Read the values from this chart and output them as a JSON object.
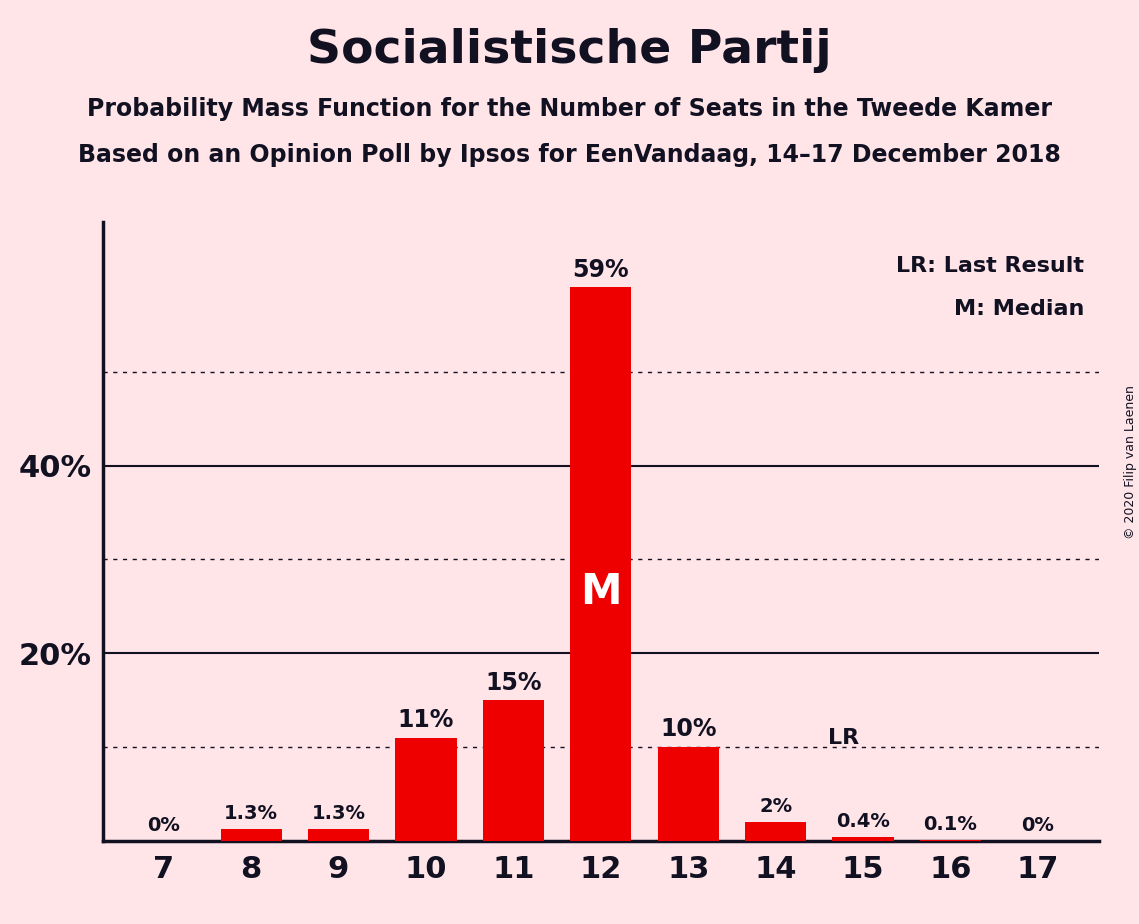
{
  "title": "Socialistische Partij",
  "subtitle1": "Probability Mass Function for the Number of Seats in the Tweede Kamer",
  "subtitle2": "Based on an Opinion Poll by Ipsos for EenVandaag, 14–17 December 2018",
  "copyright": "© 2020 Filip van Laenen",
  "categories": [
    7,
    8,
    9,
    10,
    11,
    12,
    13,
    14,
    15,
    16,
    17
  ],
  "values": [
    0.0,
    1.3,
    1.3,
    11.0,
    15.0,
    59.0,
    10.0,
    2.0,
    0.4,
    0.1,
    0.0
  ],
  "labels": [
    "0%",
    "1.3%",
    "1.3%",
    "11%",
    "15%",
    "59%",
    "10%",
    "2%",
    "0.4%",
    "0.1%",
    "0%"
  ],
  "bar_color": "#EE0000",
  "background_color": "#FFE4E8",
  "text_color": "#111122",
  "median_seat": 12,
  "last_result_seat": 14,
  "last_result_value": 9.7,
  "solid_yticks": [
    20,
    40
  ],
  "dotted_yticks": [
    10,
    30,
    50
  ],
  "ylim": [
    0,
    66
  ],
  "legend_lr": "LR: Last Result",
  "legend_m": "M: Median",
  "title_fontsize": 34,
  "subtitle_fontsize": 17,
  "tick_fontsize": 22,
  "label_fontsize_large": 17,
  "label_fontsize_small": 14,
  "legend_fontsize": 16
}
